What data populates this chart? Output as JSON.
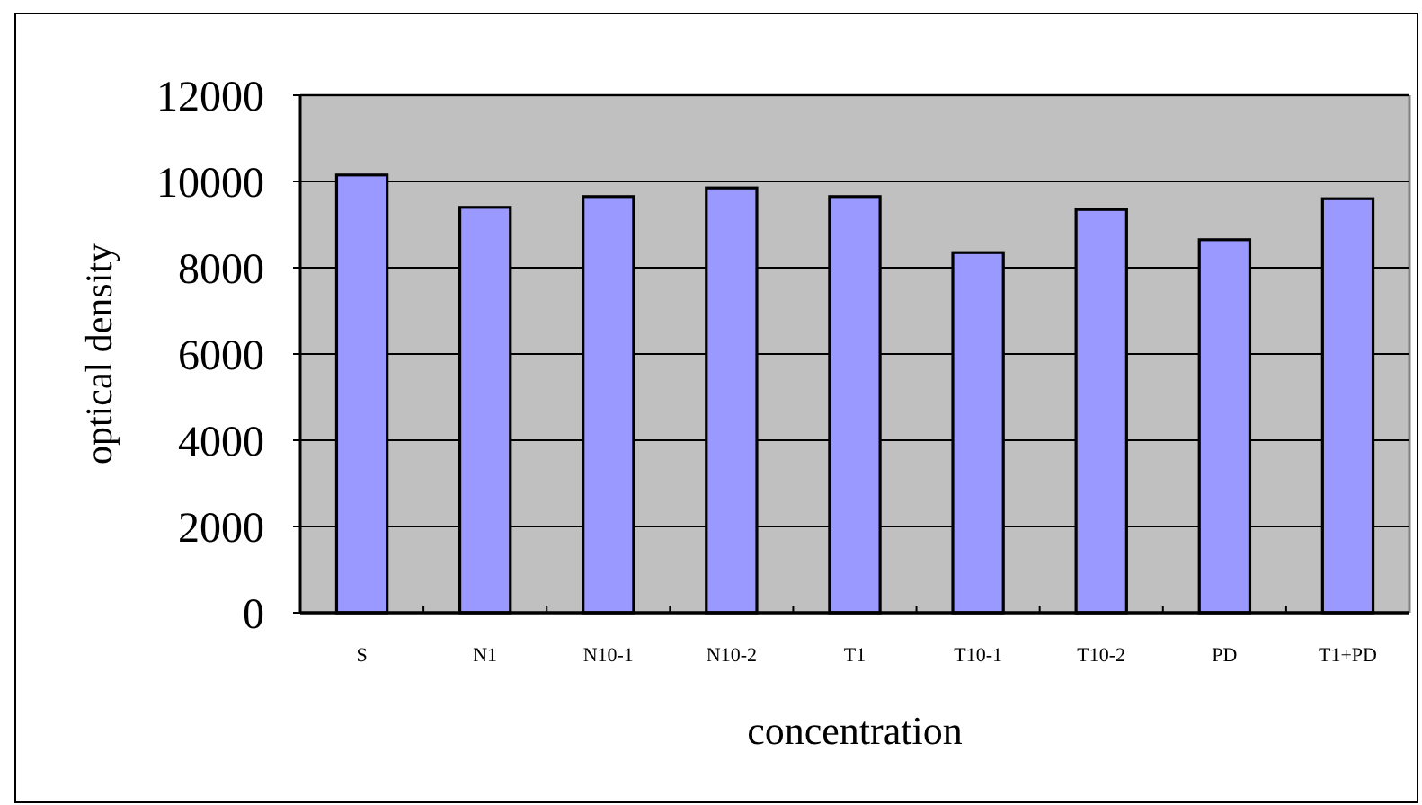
{
  "chart_data": {
    "type": "bar",
    "xlabel": "concentration",
    "ylabel": "optical density",
    "categories": [
      "S",
      "N1",
      "N10-1",
      "N10-2",
      "T1",
      "T10-1",
      "T10-2",
      "PD",
      "T1+PD"
    ],
    "values": [
      10150,
      9400,
      9650,
      9850,
      9650,
      8350,
      9350,
      8650,
      9600
    ],
    "color": "#9999ff",
    "ylim": [
      0,
      12000
    ],
    "yticks": [
      0,
      2000,
      4000,
      6000,
      8000,
      10000,
      12000
    ],
    "grid": "y"
  }
}
